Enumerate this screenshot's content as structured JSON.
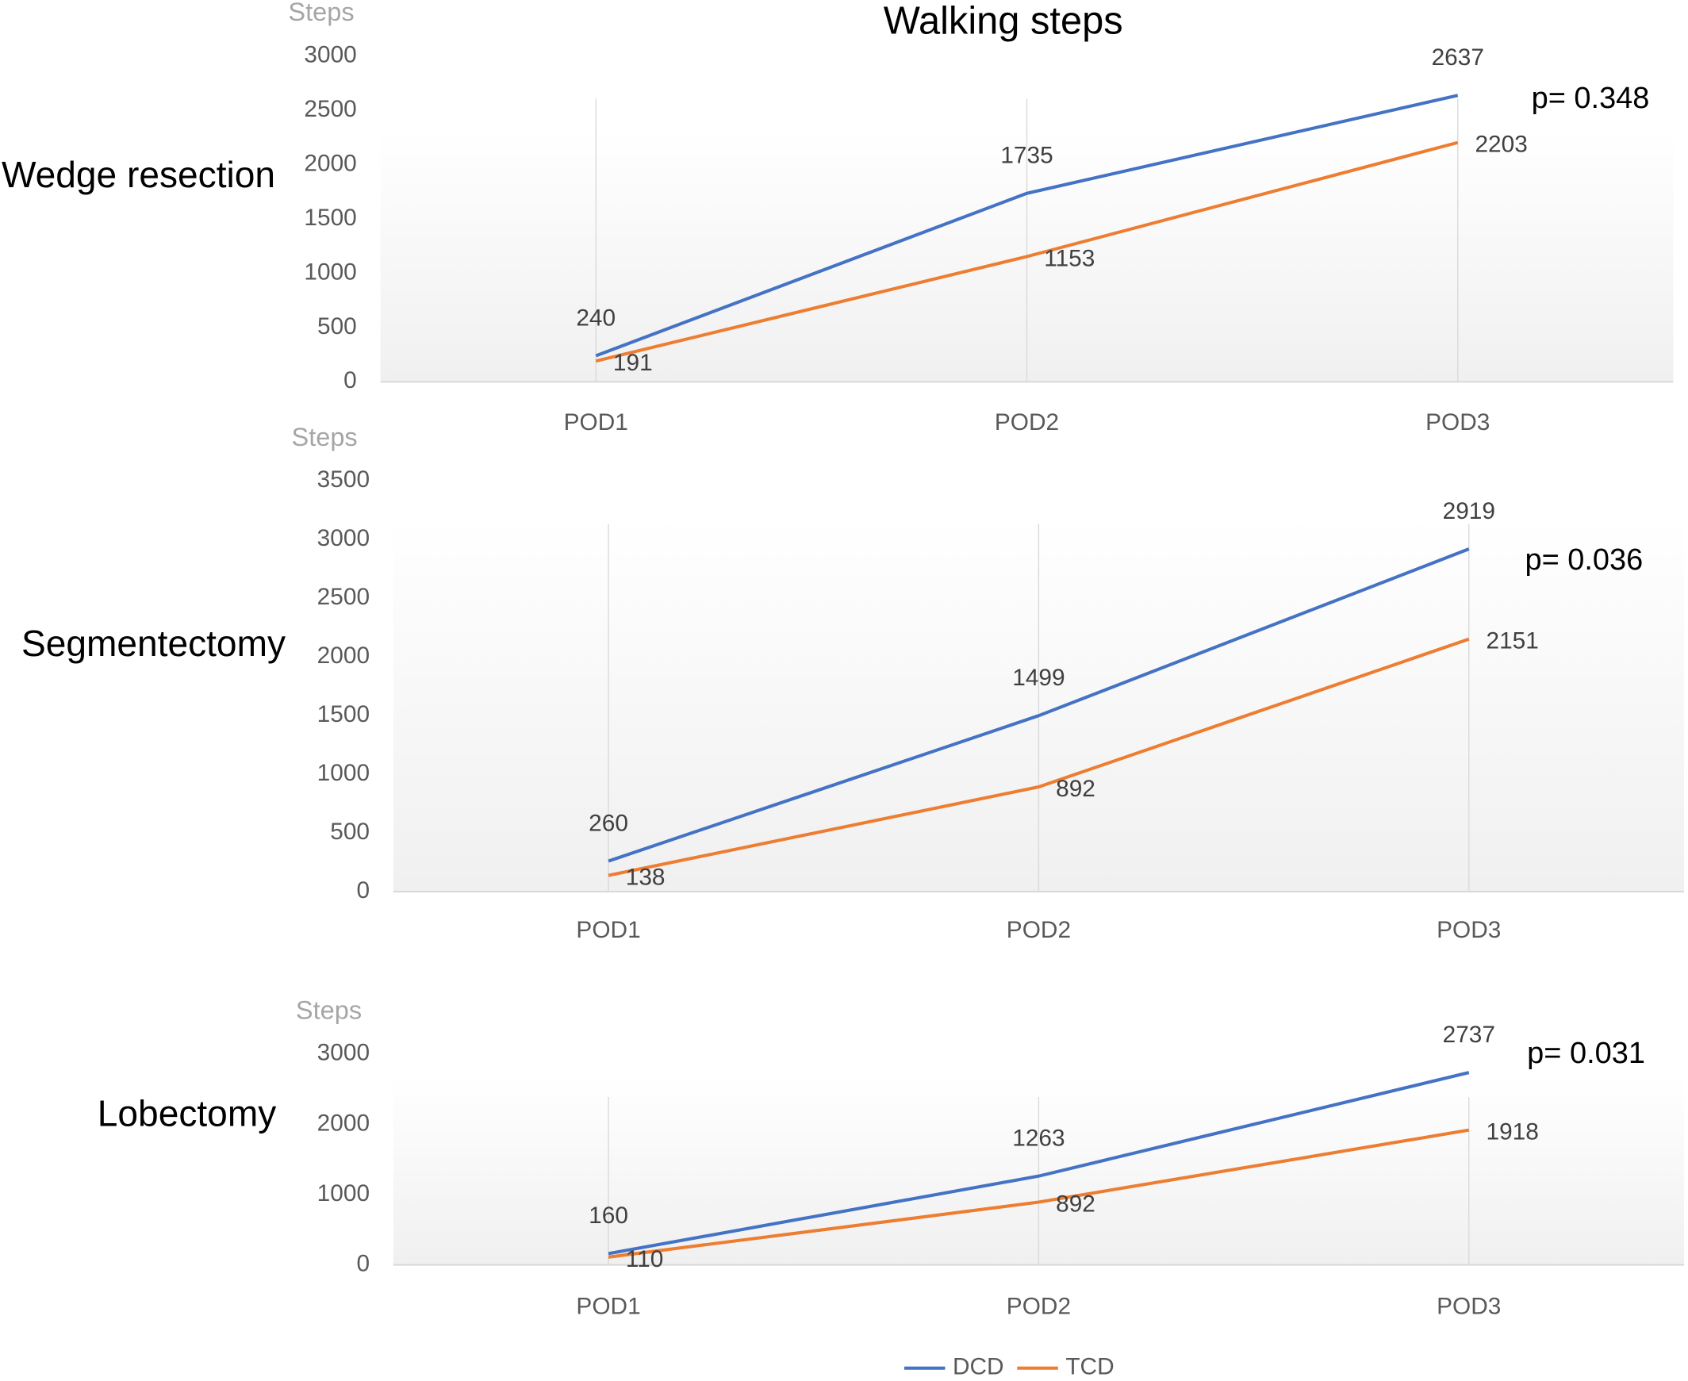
{
  "title": "Walking steps",
  "chart_data": [
    {
      "type": "line",
      "title": "Wedge resection",
      "y_label": "Steps",
      "annotation": "p= 0.348",
      "categories": [
        "POD1",
        "POD2",
        "POD3"
      ],
      "series": [
        {
          "name": "DCD",
          "color": "#4472c4",
          "values": [
            240,
            1735,
            2637
          ]
        },
        {
          "name": "TCD",
          "color": "#ed7d31",
          "values": [
            191,
            1153,
            2203
          ]
        }
      ],
      "ylim": [
        0,
        3000
      ],
      "yticks": [
        0,
        500,
        1000,
        1500,
        2000,
        2500,
        3000
      ],
      "xgrid": true
    },
    {
      "type": "line",
      "title": "Segmentectomy",
      "y_label": "Steps",
      "annotation": "p= 0.036",
      "categories": [
        "POD1",
        "POD2",
        "POD3"
      ],
      "series": [
        {
          "name": "DCD",
          "color": "#4472c4",
          "values": [
            260,
            1499,
            2919
          ]
        },
        {
          "name": "TCD",
          "color": "#ed7d31",
          "values": [
            138,
            892,
            2151
          ]
        }
      ],
      "ylim": [
        0,
        3500
      ],
      "yticks": [
        0,
        500,
        1000,
        1500,
        2000,
        2500,
        3000,
        3500
      ],
      "xgrid": true
    },
    {
      "type": "line",
      "title": "Lobectomy",
      "y_label": "Steps",
      "annotation": "p= 0.031",
      "categories": [
        "POD1",
        "POD2",
        "POD3"
      ],
      "series": [
        {
          "name": "DCD",
          "color": "#4472c4",
          "values": [
            160,
            1263,
            2737
          ]
        },
        {
          "name": "TCD",
          "color": "#ed7d31",
          "values": [
            110,
            892,
            1918
          ]
        }
      ],
      "ylim": [
        0,
        3000
      ],
      "yticks": [
        0,
        1000,
        2000,
        3000
      ],
      "xgrid": true
    }
  ]
}
